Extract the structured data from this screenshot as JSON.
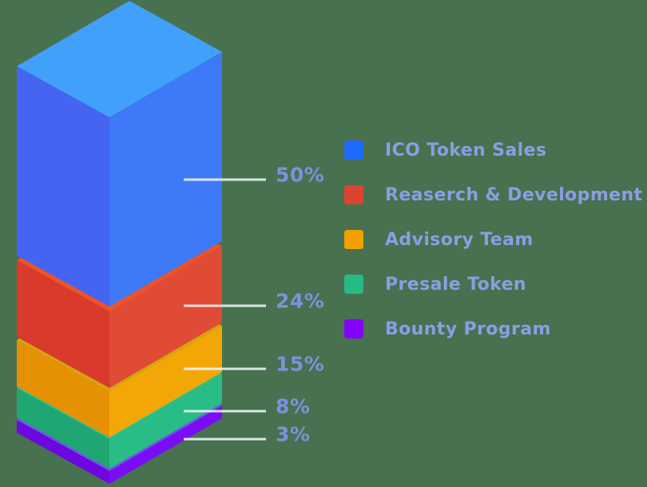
{
  "background_color": "#48714F",
  "text_colors": {
    "percent_label": "#7E90E0",
    "legend_label": "#8C9DE4"
  },
  "chart_data": {
    "type": "bar",
    "variant": "isometric-3d-stacked-single-column",
    "title": "",
    "unit": "%",
    "total": 100,
    "legend_position": "right",
    "categories": [
      "ICO Token Sales",
      "Reaserch & Development",
      "Advisory Team",
      "Presale Token",
      "Bounty Program"
    ],
    "values": [
      50,
      24,
      15,
      8,
      3
    ],
    "segments": [
      {
        "label": "ICO Token Sales",
        "value": 50,
        "display": "50%",
        "colors": {
          "legend": "#1F6AFE",
          "top": "#41A0FA",
          "left": "#4564F2",
          "right": "#3E7AF7"
        }
      },
      {
        "label": "Reaserch & Development",
        "value": 24,
        "display": "24%",
        "colors": {
          "legend": "#DC4432",
          "top": "#EE5229",
          "left": "#D93A2B",
          "right": "#DF4B35"
        }
      },
      {
        "label": "Advisory Team",
        "value": 15,
        "display": "15%",
        "colors": {
          "legend": "#F0A000",
          "top": "#D7A50B",
          "left": "#E69104",
          "right": "#F3A707"
        }
      },
      {
        "label": "Presale Token",
        "value": 8,
        "display": "8%",
        "colors": {
          "legend": "#26BA85",
          "top": "#2CC68B",
          "left": "#1FA673",
          "right": "#28BD85"
        }
      },
      {
        "label": "Bounty Program",
        "value": 3,
        "display": "3%",
        "colors": {
          "legend": "#8502FA",
          "top": "#6A5BE6",
          "left": "#6C08DF",
          "right": "#7A0DF6"
        }
      }
    ]
  }
}
